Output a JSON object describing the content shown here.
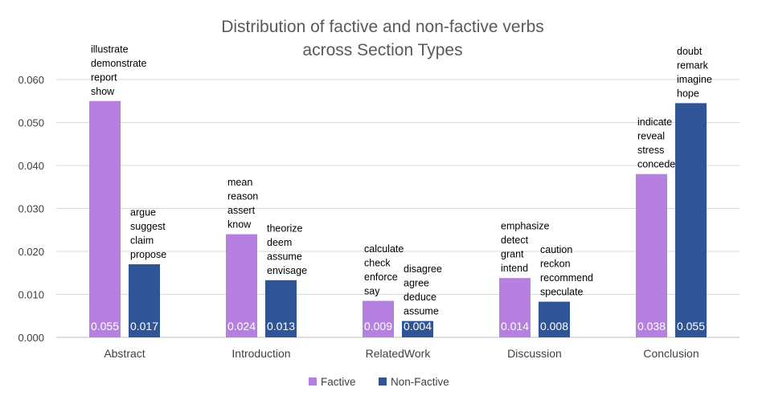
{
  "chart_data": {
    "type": "bar",
    "title_lines": [
      "Distribution of factive and non-factive verbs",
      "across Section Types"
    ],
    "categories": [
      "Abstract",
      "Introduction",
      "RelatedWork",
      "Discussion",
      "Conclusion"
    ],
    "y_ticks": [
      "0.000",
      "0.010",
      "0.020",
      "0.030",
      "0.040",
      "0.050",
      "0.060"
    ],
    "ylim": [
      0,
      0.06
    ],
    "grid": true,
    "legend_position": "bottom",
    "series": [
      {
        "name": "Factive",
        "color": "#b580e0",
        "values": [
          0.055,
          0.024,
          0.0085,
          0.0138,
          0.038
        ],
        "data_labels": [
          "0.055",
          "0.024",
          "0.009",
          "0.014",
          "0.038"
        ],
        "verbs": [
          [
            "illustrate",
            "demonstrate",
            "report",
            "show"
          ],
          [
            "mean",
            "reason",
            "assert",
            "know"
          ],
          [
            "calculate",
            "check",
            "enforce",
            "say"
          ],
          [
            "emphasize",
            "detect",
            "grant",
            "intend"
          ],
          [
            "indicate",
            "reveal",
            "stress",
            "concede"
          ]
        ]
      },
      {
        "name": "Non-Factive",
        "color": "#2f5597",
        "values": [
          0.017,
          0.0133,
          0.0038,
          0.0083,
          0.0545
        ],
        "data_labels": [
          "0.017",
          "0.013",
          "0.004",
          "0.008",
          "0.055"
        ],
        "verbs": [
          [
            "argue",
            "suggest",
            "claim",
            "propose"
          ],
          [
            "theorize",
            "deem",
            "assume",
            "envisage"
          ],
          [
            "disagree",
            "agree",
            "deduce",
            "assume"
          ],
          [
            "caution",
            "reckon",
            "recommend",
            "speculate"
          ],
          [
            "doubt",
            "remark",
            "imagine",
            "hope"
          ]
        ]
      }
    ]
  }
}
